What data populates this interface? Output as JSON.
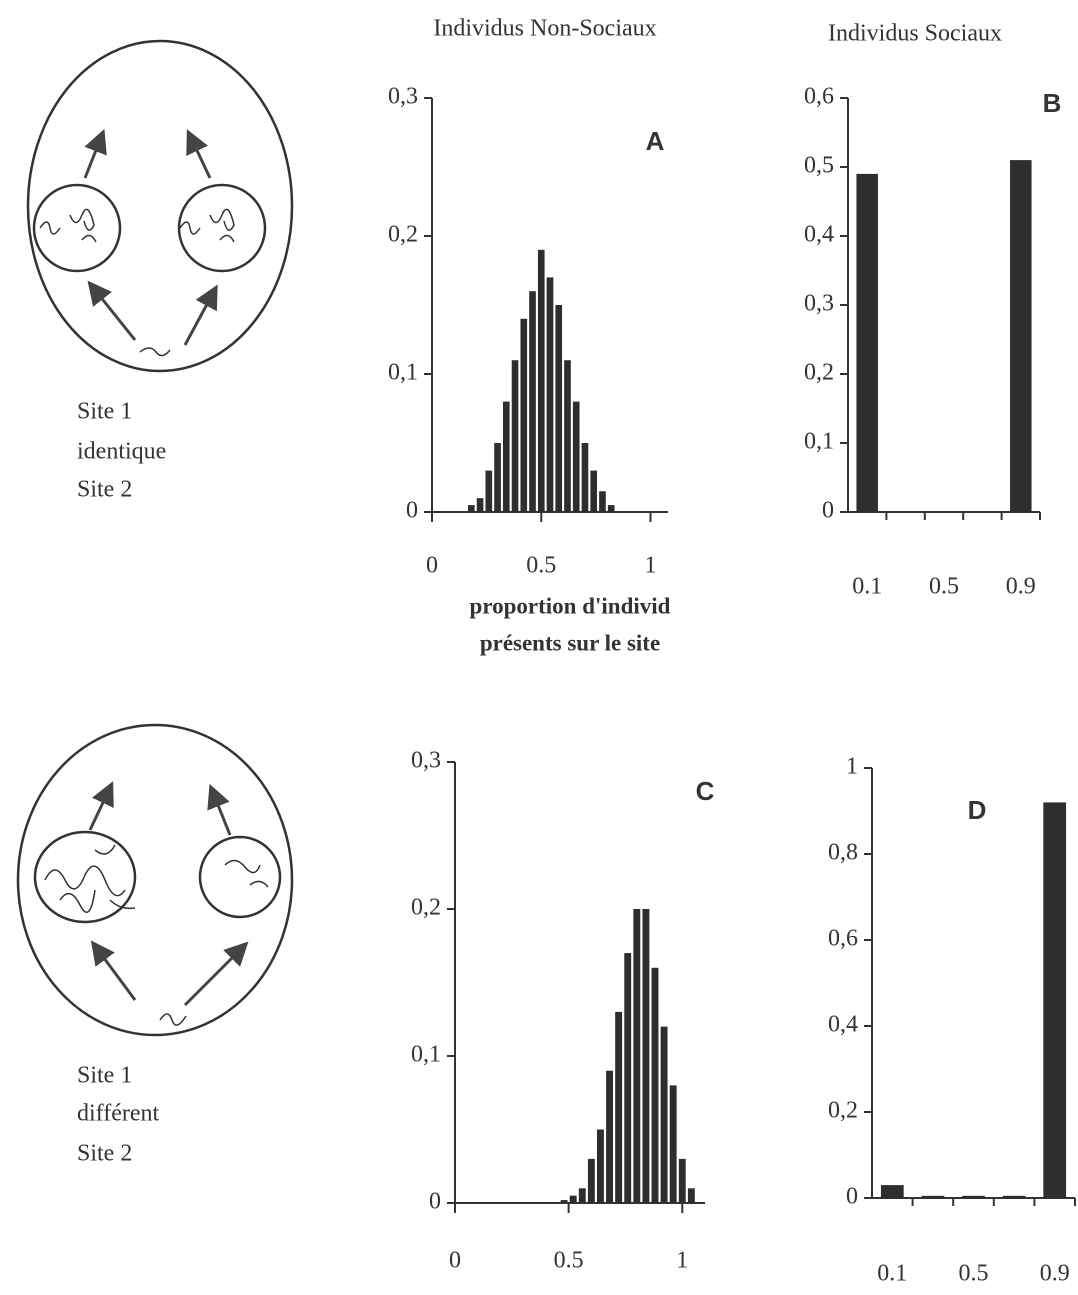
{
  "column_titles": [
    "Individus Non-Sociaux",
    "Individus Sociaux"
  ],
  "diagrams": [
    {
      "labels": [
        "Site 1",
        "identique",
        "Site 2"
      ]
    },
    {
      "labels": [
        "Site 1",
        "différent",
        "Site 2"
      ]
    }
  ],
  "chart_data": [
    {
      "type": "histogram",
      "annotation": "A",
      "color": "#2e2e2e",
      "bins": [
        0.16,
        0.2,
        0.24,
        0.28,
        0.32,
        0.36,
        0.4,
        0.44,
        0.48,
        0.52,
        0.56,
        0.6,
        0.64,
        0.68,
        0.72,
        0.76,
        0.8,
        0.84
      ],
      "values": [
        0.005,
        0.01,
        0.03,
        0.05,
        0.08,
        0.11,
        0.14,
        0.16,
        0.19,
        0.17,
        0.15,
        0.11,
        0.08,
        0.05,
        0.03,
        0.015,
        0.005
      ],
      "xlim": [
        0,
        1.08
      ],
      "xticks": [
        0,
        0.5,
        1
      ],
      "ylim": [
        0,
        0.3
      ],
      "yticks": [
        0,
        {
          "value": 0.1,
          "label": "0,1"
        },
        {
          "value": 0.2,
          "label": "0,2"
        },
        {
          "value": 0.3,
          "label": "0,3"
        }
      ],
      "xlabel": [
        "proportion d'individ",
        "présents sur le site"
      ]
    },
    {
      "type": "bar",
      "annotation": "B",
      "color": "#2e2e2e",
      "categories": [
        "0.1",
        null,
        "0.5",
        null,
        "0.9"
      ],
      "values": [
        0.49,
        0,
        0,
        0,
        0.51
      ],
      "ylim": [
        0,
        0.6
      ],
      "yticks": [
        0,
        {
          "value": 0.1,
          "label": "0,1"
        },
        {
          "value": 0.2,
          "label": "0,2"
        },
        {
          "value": 0.3,
          "label": "0,3"
        },
        {
          "value": 0.4,
          "label": "0,4"
        },
        {
          "value": 0.5,
          "label": "0,5"
        },
        {
          "value": 0.6,
          "label": "0,6"
        }
      ]
    },
    {
      "type": "histogram",
      "annotation": "C",
      "color": "#2e2e2e",
      "bins": [
        0.46,
        0.5,
        0.54,
        0.58,
        0.62,
        0.66,
        0.7,
        0.74,
        0.78,
        0.82,
        0.86,
        0.9,
        0.94,
        0.98,
        1.02,
        1.06
      ],
      "values": [
        0.002,
        0.005,
        0.01,
        0.03,
        0.05,
        0.09,
        0.13,
        0.17,
        0.2,
        0.2,
        0.16,
        0.12,
        0.08,
        0.03,
        0.01
      ],
      "xlim": [
        0,
        1.1
      ],
      "xticks": [
        0,
        0.5,
        1
      ],
      "ylim": [
        0,
        0.3
      ],
      "yticks": [
        0,
        {
          "value": 0.1,
          "label": "0,1"
        },
        {
          "value": 0.2,
          "label": "0,2"
        },
        {
          "value": 0.3,
          "label": "0,3"
        }
      ]
    },
    {
      "type": "bar",
      "annotation": "D",
      "color": "#2e2e2e",
      "categories": [
        "0.1",
        null,
        "0.5",
        null,
        "0.9"
      ],
      "values": [
        0.03,
        0.005,
        0.005,
        0.005,
        0.92
      ],
      "ylim": [
        0,
        1
      ],
      "yticks": [
        0,
        {
          "value": 0.2,
          "label": "0,2"
        },
        {
          "value": 0.4,
          "label": "0,4"
        },
        {
          "value": 0.6,
          "label": "0,6"
        },
        {
          "value": 0.8,
          "label": "0,8"
        },
        1
      ]
    }
  ]
}
